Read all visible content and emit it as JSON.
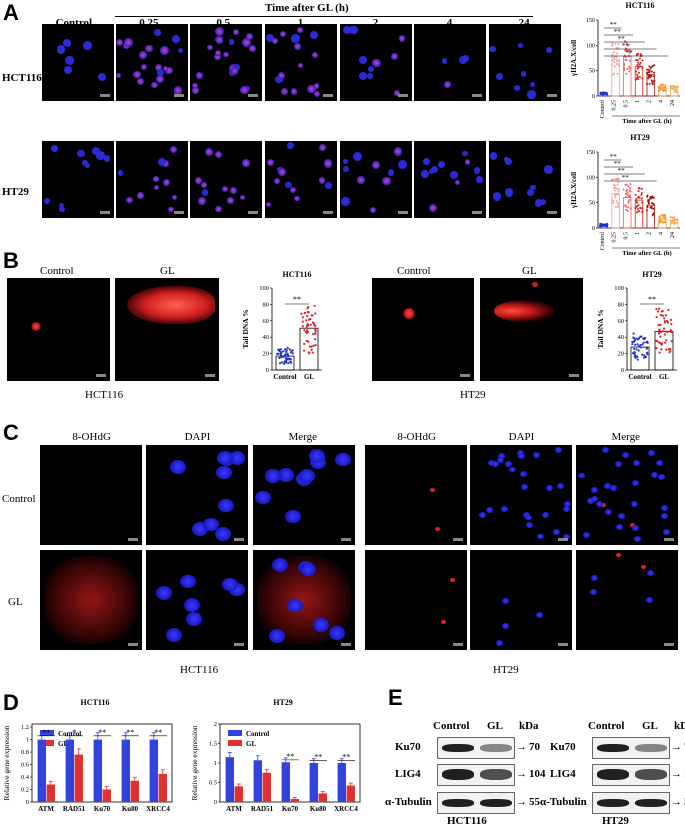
{
  "panelA": {
    "label": "A",
    "header": "Time after GL (h)",
    "columns": [
      "Control",
      "0.25",
      "0.5",
      "1",
      "2",
      "4",
      "24"
    ],
    "rows": [
      "HCT116",
      "HT29"
    ]
  },
  "panelB": {
    "label": "B",
    "hct_labels": [
      "Control",
      "GL"
    ],
    "hct_caption": "HCT116",
    "ht_labels": [
      "Control",
      "GL"
    ],
    "ht_caption": "HT29"
  },
  "panelC": {
    "label": "C",
    "columns": [
      "8-OHdG",
      "DAPI",
      "Merge",
      "8-OHdG",
      "DAPI",
      "Merge"
    ],
    "rows": [
      "Control",
      "GL"
    ],
    "captions": [
      "HCT116",
      "HT29"
    ]
  },
  "panelD": {
    "label": "D"
  },
  "panelE": {
    "label": "E",
    "hct": {
      "lanes": [
        "Control",
        "GL"
      ],
      "unit": "kDa",
      "proteins": [
        "Ku70",
        "LIG4",
        "α-Tubulin"
      ],
      "sizes": [
        "70",
        "104",
        "55"
      ],
      "caption": "HCT116"
    },
    "ht": {
      "lanes": [
        "Control",
        "GL"
      ],
      "unit": "kDa",
      "proteins": [
        "Ku70",
        "LIG4",
        "α-Tubulin"
      ],
      "sizes": [
        "70",
        "104",
        "55"
      ],
      "caption": "HT29"
    }
  },
  "chart_data": [
    {
      "type": "bar",
      "title": "HCT116",
      "xlabel": "Time after GL (h)",
      "ylabel": "γH2A.X/cell",
      "categories": [
        "Control",
        "0.25",
        "0.5",
        "1",
        "2",
        "4",
        "24"
      ],
      "values": [
        5,
        72,
        78,
        58,
        42,
        16,
        14
      ],
      "ylim": [
        0,
        150
      ],
      "yticks": [
        0,
        50,
        100,
        150
      ],
      "significance": [
        "**",
        "**",
        "**",
        "**",
        "**"
      ],
      "colors": [
        "#2233cc",
        "#f4a0a0",
        "#ee6666",
        "#dd2222",
        "#aa1111",
        "#f0a040",
        "#f0b060"
      ]
    },
    {
      "type": "bar",
      "title": "HT29",
      "xlabel": "Time after GL (h)",
      "ylabel": "γH2A.X/cell",
      "categories": [
        "Control",
        "0.25",
        "0.5",
        "1",
        "2",
        "4",
        "24"
      ],
      "values": [
        6,
        68,
        60,
        55,
        45,
        18,
        15
      ],
      "ylim": [
        0,
        150
      ],
      "yticks": [
        0,
        50,
        100,
        150
      ],
      "significance": [
        "**",
        "**",
        "**",
        "**"
      ],
      "colors": [
        "#2233cc",
        "#f4a0a0",
        "#ee6666",
        "#dd2222",
        "#aa1111",
        "#f0a040",
        "#f0b060"
      ]
    },
    {
      "type": "bar",
      "title": "HCT116",
      "ylabel": "Tail DNA %",
      "categories": [
        "Control",
        "GL"
      ],
      "values": [
        17,
        51
      ],
      "ylim": [
        0,
        100
      ],
      "yticks": [
        0,
        20,
        40,
        60,
        80,
        100
      ],
      "significance": [
        "**"
      ],
      "colors": [
        "#2233cc",
        "#dd2222"
      ]
    },
    {
      "type": "bar",
      "title": "HT29",
      "ylabel": "Tail DNA %",
      "categories": [
        "Control",
        "GL"
      ],
      "values": [
        28,
        47
      ],
      "ylim": [
        0,
        100
      ],
      "yticks": [
        0,
        20,
        40,
        60,
        80,
        100
      ],
      "significance": [
        "**"
      ],
      "colors": [
        "#2233cc",
        "#dd2222"
      ]
    },
    {
      "type": "bar",
      "title": "HCT116",
      "ylabel": "Relative gene expression",
      "categories": [
        "ATM",
        "RAD51",
        "Ku70",
        "Ku80",
        "XRCC4"
      ],
      "series": [
        {
          "name": "Control",
          "values": [
            1.0,
            1.0,
            1.0,
            1.0,
            1.0
          ],
          "color": "#3344dd"
        },
        {
          "name": "GL",
          "values": [
            0.28,
            0.76,
            0.2,
            0.34,
            0.45
          ],
          "color": "#e03030"
        }
      ],
      "ylim": [
        0,
        1.25
      ],
      "yticks": [
        0,
        0.2,
        0.4,
        0.6,
        0.8,
        1.0,
        1.2
      ],
      "significance": [
        "**",
        "*",
        "**",
        "**",
        "**"
      ]
    },
    {
      "type": "bar",
      "title": "HT29",
      "ylabel": "Relative gene expression",
      "categories": [
        "ATM",
        "RAD51",
        "Ku70",
        "Ku80",
        "XRCC4"
      ],
      "series": [
        {
          "name": "Control",
          "values": [
            1.15,
            1.07,
            1.02,
            1.0,
            1.0
          ],
          "color": "#3344dd"
        },
        {
          "name": "GL",
          "values": [
            0.4,
            0.75,
            0.08,
            0.22,
            0.42
          ],
          "color": "#e03030"
        }
      ],
      "ylim": [
        0,
        2.0
      ],
      "yticks": [
        0,
        0.5,
        1.0,
        1.5,
        2.0
      ],
      "significance": [
        "",
        "",
        "**",
        "**",
        "**"
      ]
    }
  ]
}
